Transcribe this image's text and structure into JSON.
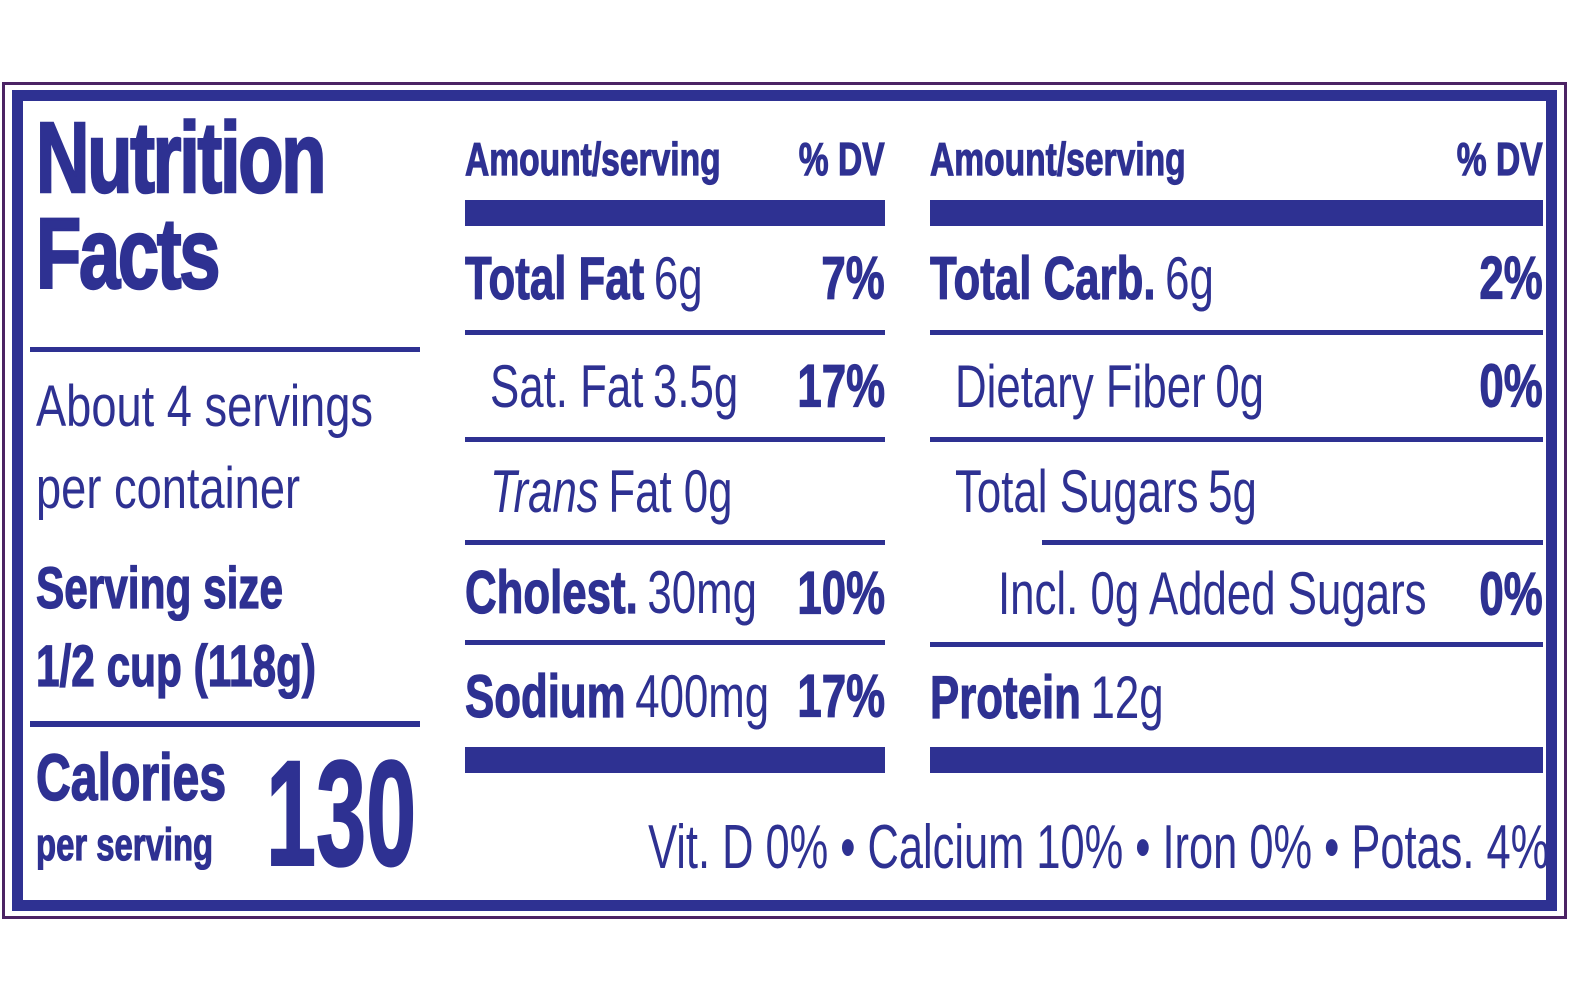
{
  "title": {
    "line1": "Nutrition",
    "line2": "Facts"
  },
  "servings_per_container": {
    "line1": "About 4 servings",
    "line2": "per container"
  },
  "serving_size": {
    "label": "Serving size",
    "value": "1/2 cup (118g)"
  },
  "calories": {
    "label": "Calories",
    "sublabel": "per serving",
    "value": "130"
  },
  "column_header": {
    "amount": "Amount/serving",
    "dv": "% DV"
  },
  "columns": {
    "middle": {
      "rows": [
        {
          "label": "Total Fat",
          "amount": "6g",
          "dv": "7%"
        },
        {
          "label": "Sat. Fat",
          "amount": "3.5g",
          "dv": "17%"
        },
        {
          "label": "Trans",
          "amount": "Fat 0g",
          "dv": ""
        },
        {
          "label": "Cholest.",
          "amount": "30mg",
          "dv": "10%"
        },
        {
          "label": "Sodium",
          "amount": "400mg",
          "dv": "17%"
        }
      ]
    },
    "right": {
      "rows": [
        {
          "label": "Total Carb.",
          "amount": "6g",
          "dv": "2%"
        },
        {
          "label": "Dietary Fiber",
          "amount": "0g",
          "dv": "0%"
        },
        {
          "label": "Total Sugars",
          "amount": "5g",
          "dv": ""
        },
        {
          "label": "Incl. 0g Added Sugars",
          "amount": "",
          "dv": "0%"
        },
        {
          "label": "Protein",
          "amount": "12g",
          "dv": ""
        }
      ]
    }
  },
  "micronutrients": {
    "text": "Vit. D 0% • Calcium 10% • Iron 0% • Potas. 4%",
    "items": [
      {
        "name": "Vit. D",
        "dv": "0%"
      },
      {
        "name": "Calcium",
        "dv": "10%"
      },
      {
        "name": "Iron",
        "dv": "0%"
      },
      {
        "name": "Potas.",
        "dv": "4%"
      }
    ]
  },
  "colors": {
    "text_blue": "#2e3192",
    "frame_purple": "#4b2364",
    "background": "#ffffff"
  }
}
